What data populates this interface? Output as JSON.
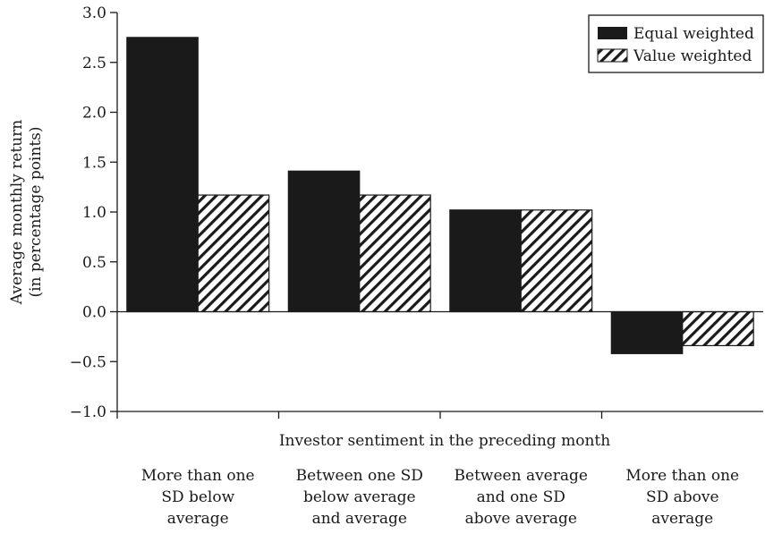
{
  "chart_data": {
    "type": "bar",
    "categories": [
      [
        "More than one",
        "SD below",
        "average"
      ],
      [
        "Between one SD",
        "below average",
        "and average"
      ],
      [
        "Between average",
        "and one SD",
        "above average"
      ],
      [
        "More than one",
        "SD above",
        "average"
      ]
    ],
    "series": [
      {
        "name": "Equal weighted",
        "values": [
          2.75,
          1.41,
          1.02,
          -0.42
        ],
        "fill": "solid",
        "color": "#1a1a1a"
      },
      {
        "name": "Value weighted",
        "values": [
          1.17,
          1.17,
          1.02,
          -0.34
        ],
        "fill": "hatched",
        "color": "#1a1a1a"
      }
    ],
    "title": "",
    "xlabel": "Investor sentiment in the preceding month",
    "ylabel": [
      "Average monthly return",
      "(in percentage points)"
    ],
    "ylim": [
      -1.0,
      3.0
    ],
    "yticks": [
      "3.0",
      "2.5",
      "2.0",
      "1.5",
      "1.0",
      "0.5",
      "0.0",
      "−0.5",
      "−1.0"
    ],
    "ytick_values": [
      3.0,
      2.5,
      2.0,
      1.5,
      1.0,
      0.5,
      0.0,
      -0.5,
      -1.0
    ],
    "legend": "top-right",
    "grid": false
  }
}
